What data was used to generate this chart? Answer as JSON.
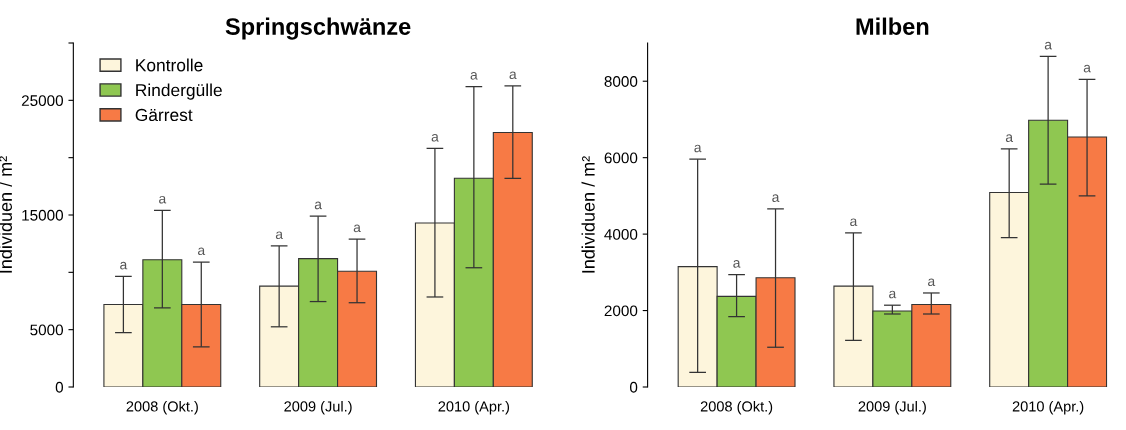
{
  "chart_data": [
    {
      "type": "bar",
      "title": "Springschwänze",
      "ylabel": "Individuen / m²",
      "categories": [
        "2008 (Okt.)",
        "2009 (Jul.)",
        "2010 (Apr.)"
      ],
      "series": [
        {
          "name": "Kontrolle",
          "color": "#fdf5dc",
          "values": [
            7200,
            8800,
            14300
          ],
          "errors": [
            [
              4750,
              9650
            ],
            [
              5250,
              12300
            ],
            [
              7850,
              20800
            ]
          ]
        },
        {
          "name": "Rindergülle",
          "color": "#8fc751",
          "values": [
            11100,
            11200,
            18200
          ],
          "errors": [
            [
              6900,
              15400
            ],
            [
              7450,
              14900
            ],
            [
              10400,
              26200
            ]
          ]
        },
        {
          "name": "Gärrest",
          "color": "#f77a45",
          "values": [
            7200,
            10100,
            22200
          ],
          "errors": [
            [
              3500,
              10900
            ],
            [
              7350,
              12900
            ],
            [
              18200,
              26250
            ]
          ]
        }
      ],
      "annotations": [
        "a",
        "a",
        "a",
        "a",
        "a",
        "a",
        "a",
        "a",
        "a"
      ],
      "ylim": [
        0,
        30000
      ],
      "yticks": [
        0,
        5000,
        {
          "value": 10000,
          "label": null
        },
        15000,
        {
          "value": 20000,
          "label": null
        },
        25000,
        {
          "value": 30000,
          "label": null
        }
      ],
      "legend": "top left",
      "grid": false
    },
    {
      "type": "bar",
      "title": "Milben",
      "ylabel": "Individuen / m²",
      "categories": [
        "2008 (Okt.)",
        "2009 (Jul.)",
        "2010 (Apr.)"
      ],
      "series": [
        {
          "color": "#fdf5dc",
          "values": [
            3150,
            2640,
            5090
          ],
          "errors": [
            [
              380,
              5960
            ],
            [
              1220,
              4030
            ],
            [
              3910,
              6230
            ]
          ]
        },
        {
          "color": "#8fc751",
          "values": [
            2370,
            1990,
            6980
          ],
          "errors": [
            [
              1840,
              2940
            ],
            [
              1910,
              2140
            ],
            [
              5310,
              8650
            ]
          ]
        },
        {
          "color": "#f77a45",
          "values": [
            2860,
            2160,
            6540
          ],
          "errors": [
            [
              1040,
              4660
            ],
            [
              1910,
              2460
            ],
            [
              5000,
              8050
            ]
          ]
        }
      ],
      "annotations": [
        "a",
        "a",
        "a",
        "a",
        "a",
        "a",
        "a",
        "a",
        "a"
      ],
      "ylim": [
        0,
        9000
      ],
      "yticks": [
        0,
        2000,
        4000,
        6000,
        8000
      ],
      "grid": false
    }
  ]
}
